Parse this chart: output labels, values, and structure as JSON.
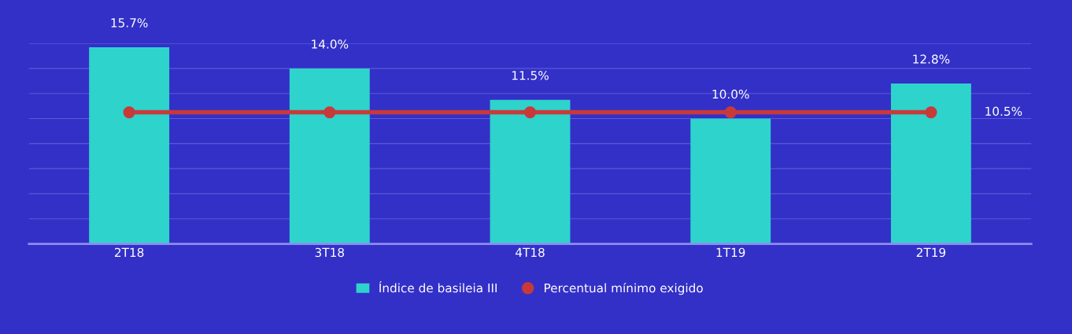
{
  "chart_data": {
    "type": "bar",
    "categories": [
      "2T18",
      "3T18",
      "4T18",
      "1T19",
      "2T19"
    ],
    "series": [
      {
        "name": "Índice de basileia III",
        "color": "#2ed3cc",
        "values": [
          15.7,
          14.0,
          11.5,
          10.0,
          12.8
        ],
        "value_labels": [
          "15.7%",
          "14.0%",
          "11.5%",
          "10.0%",
          "12.8%"
        ]
      },
      {
        "name": "Percentual mínimo exigido",
        "type": "line",
        "color": "#c83a3a",
        "values": [
          10.5,
          10.5,
          10.5,
          10.5,
          10.5
        ],
        "marker": "circle",
        "line_style": "solid"
      }
    ],
    "ylim": [
      0,
      16
    ],
    "yticks": [
      {
        "value": 0,
        "label": null
      },
      {
        "value": 2,
        "label": null
      },
      {
        "value": 4,
        "label": null
      },
      {
        "value": 6,
        "label": null
      },
      {
        "value": 8,
        "label": null
      },
      {
        "value": 10,
        "label": null
      },
      {
        "value": 12,
        "label": null
      },
      {
        "value": 14,
        "label": null
      },
      {
        "value": 16,
        "label": null
      }
    ],
    "annotations": [
      "10.5%"
    ],
    "grid": "y",
    "tick_labels": "x",
    "legend": "bottom"
  }
}
